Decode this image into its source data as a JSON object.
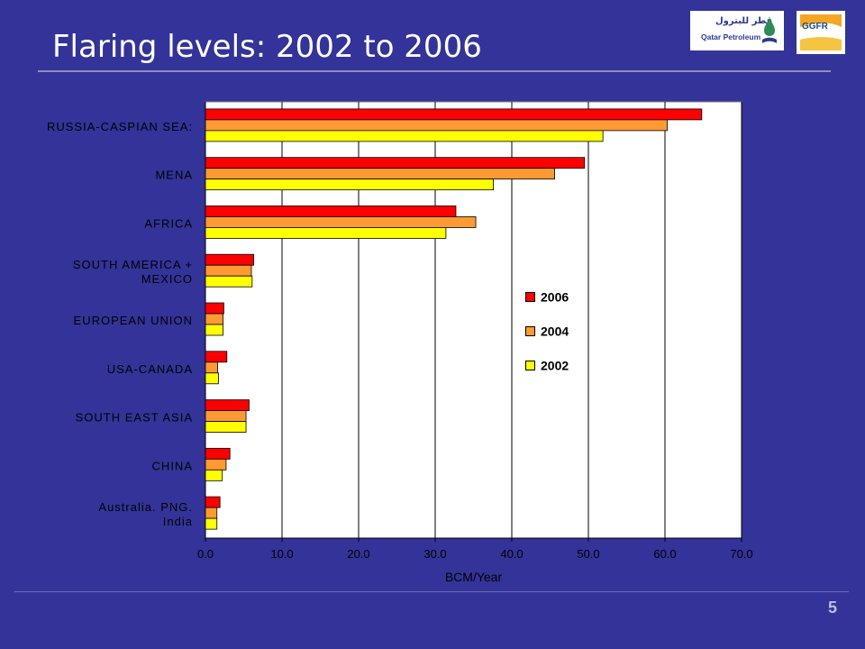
{
  "slide": {
    "title": "Flaring levels: 2002 to 2006",
    "page_number": "5"
  },
  "logos": {
    "qatar_petroleum_arabic": "قطر للبترول",
    "qatar_petroleum_english": "Qatar Petroleum",
    "ggfr": "GGFR"
  },
  "colors": {
    "background": "#333399",
    "series_2006": "#ff0000",
    "series_2004": "#ff9933",
    "series_2002": "#ffff00"
  },
  "chart_data": {
    "type": "bar",
    "orientation": "horizontal",
    "categories": [
      "RUSSIA-CASPIAN SEA:",
      "MENA",
      "AFRICA",
      "SOUTH AMERICA + MEXICO",
      "EUROPEAN UNION",
      "USA-CANADA",
      "SOUTH EAST ASIA",
      "CHINA",
      "Australia. PNG. India"
    ],
    "series": [
      {
        "name": "2006",
        "color": "#ff0000",
        "values": [
          64.8,
          49.5,
          32.7,
          6.3,
          2.4,
          2.8,
          5.7,
          3.2,
          1.9
        ]
      },
      {
        "name": "2004",
        "color": "#ff9933",
        "values": [
          60.3,
          45.6,
          35.3,
          6.0,
          2.3,
          1.6,
          5.3,
          2.7,
          1.5
        ]
      },
      {
        "name": "2002",
        "color": "#ffff00",
        "values": [
          51.9,
          37.6,
          31.4,
          6.1,
          2.3,
          1.7,
          5.3,
          2.2,
          1.5
        ]
      }
    ],
    "xlabel": "BCM/Year",
    "xlim": [
      0,
      70
    ],
    "xticks": [
      "0.0",
      "10.0",
      "20.0",
      "30.0",
      "40.0",
      "50.0",
      "60.0",
      "70.0"
    ],
    "grid": true,
    "legend": [
      "2006",
      "2004",
      "2002"
    ],
    "legend_placement": "center-right"
  }
}
